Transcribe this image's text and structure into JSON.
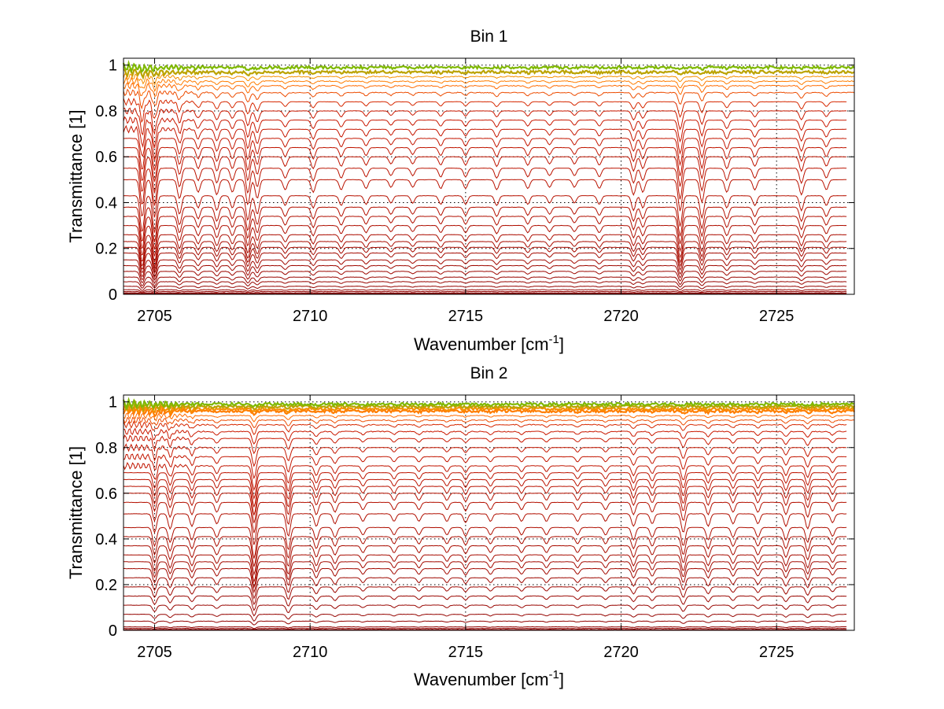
{
  "chart_data": [
    {
      "type": "line",
      "title": "Bin 1",
      "xlabel": "Wavenumber [cm",
      "xlabel_sup": "-1",
      "xlabel_end": "]",
      "ylabel": "Transmittance [1]",
      "xlim": [
        2704,
        2727.5
      ],
      "ylim": [
        0,
        1.03
      ],
      "xticks": [
        2705,
        2710,
        2715,
        2720,
        2725
      ],
      "xtick_labels": [
        "2705",
        "2710",
        "2715",
        "2720",
        "2725"
      ],
      "yticks": [
        0,
        0.2,
        0.4,
        0.6,
        0.8,
        1
      ],
      "ytick_labels": [
        "0",
        "0.2",
        "0.4",
        "0.6",
        "0.8",
        "1"
      ],
      "grid": true,
      "series_count": 33,
      "base_levels": [
        0.003,
        0.006,
        0.012,
        0.02,
        0.035,
        0.055,
        0.075,
        0.1,
        0.125,
        0.15,
        0.18,
        0.205,
        0.23,
        0.26,
        0.3,
        0.34,
        0.38,
        0.43,
        0.5,
        0.55,
        0.6,
        0.64,
        0.68,
        0.72,
        0.76,
        0.8,
        0.84,
        0.88,
        0.91,
        0.93,
        0.95,
        0.97,
        0.99
      ],
      "absorption_lines_cm1": [
        2704.6,
        2705.0,
        2705.8,
        2706.4,
        2707.0,
        2707.5,
        2708.0,
        2708.3,
        2709.2,
        2710.1,
        2711.0,
        2711.8,
        2712.6,
        2713.3,
        2714.2,
        2715.0,
        2716.0,
        2717.0,
        2717.7,
        2718.5,
        2719.3,
        2720.4,
        2720.7,
        2721.9,
        2722.6,
        2723.4,
        2724.3,
        2725.8,
        2726.6
      ],
      "absorption_depths": [
        0.3,
        0.3,
        0.15,
        0.1,
        0.12,
        0.1,
        0.2,
        0.15,
        0.08,
        0.1,
        0.08,
        0.07,
        0.06,
        0.06,
        0.07,
        0.07,
        0.08,
        0.07,
        0.06,
        0.06,
        0.07,
        0.12,
        0.1,
        0.25,
        0.18,
        0.1,
        0.08,
        0.12,
        0.08
      ],
      "colors": [
        "#8b0000",
        "#cc1a00",
        "#ff6600",
        "#ff8c00",
        "#7fb800"
      ]
    },
    {
      "type": "line",
      "title": "Bin 2",
      "xlabel": "Wavenumber [cm",
      "xlabel_sup": "-1",
      "xlabel_end": "]",
      "ylabel": "Transmittance [1]",
      "xlim": [
        2704,
        2727.5
      ],
      "ylim": [
        0,
        1.03
      ],
      "xticks": [
        2705,
        2710,
        2715,
        2720,
        2725
      ],
      "xtick_labels": [
        "2705",
        "2710",
        "2715",
        "2720",
        "2725"
      ],
      "yticks": [
        0,
        0.2,
        0.4,
        0.6,
        0.8,
        1
      ],
      "ytick_labels": [
        "0",
        "0.2",
        "0.4",
        "0.6",
        "0.8",
        "1"
      ],
      "grid": true,
      "series_count": 33,
      "base_levels": [
        0.003,
        0.008,
        0.015,
        0.04,
        0.07,
        0.11,
        0.15,
        0.19,
        0.23,
        0.27,
        0.3,
        0.33,
        0.37,
        0.41,
        0.45,
        0.51,
        0.56,
        0.6,
        0.63,
        0.66,
        0.69,
        0.72,
        0.76,
        0.8,
        0.84,
        0.87,
        0.9,
        0.92,
        0.94,
        0.96,
        0.97,
        0.98,
        0.99
      ],
      "absorption_lines_cm1": [
        2705.0,
        2705.5,
        2706.2,
        2707.0,
        2708.2,
        2709.3,
        2710.2,
        2710.8,
        2711.7,
        2712.7,
        2713.5,
        2714.4,
        2715.0,
        2715.8,
        2716.8,
        2717.6,
        2718.6,
        2719.5,
        2720.4,
        2721.0,
        2722.0,
        2722.8,
        2723.6,
        2724.4,
        2725.3,
        2726.0,
        2726.8
      ],
      "absorption_depths": [
        0.15,
        0.12,
        0.1,
        0.08,
        0.25,
        0.18,
        0.1,
        0.08,
        0.06,
        0.06,
        0.06,
        0.06,
        0.07,
        0.06,
        0.06,
        0.06,
        0.06,
        0.06,
        0.1,
        0.08,
        0.15,
        0.1,
        0.08,
        0.08,
        0.1,
        0.12,
        0.07
      ],
      "colors": [
        "#8b0000",
        "#cc1a00",
        "#ff6600",
        "#ff8c00",
        "#7fb800"
      ]
    }
  ]
}
